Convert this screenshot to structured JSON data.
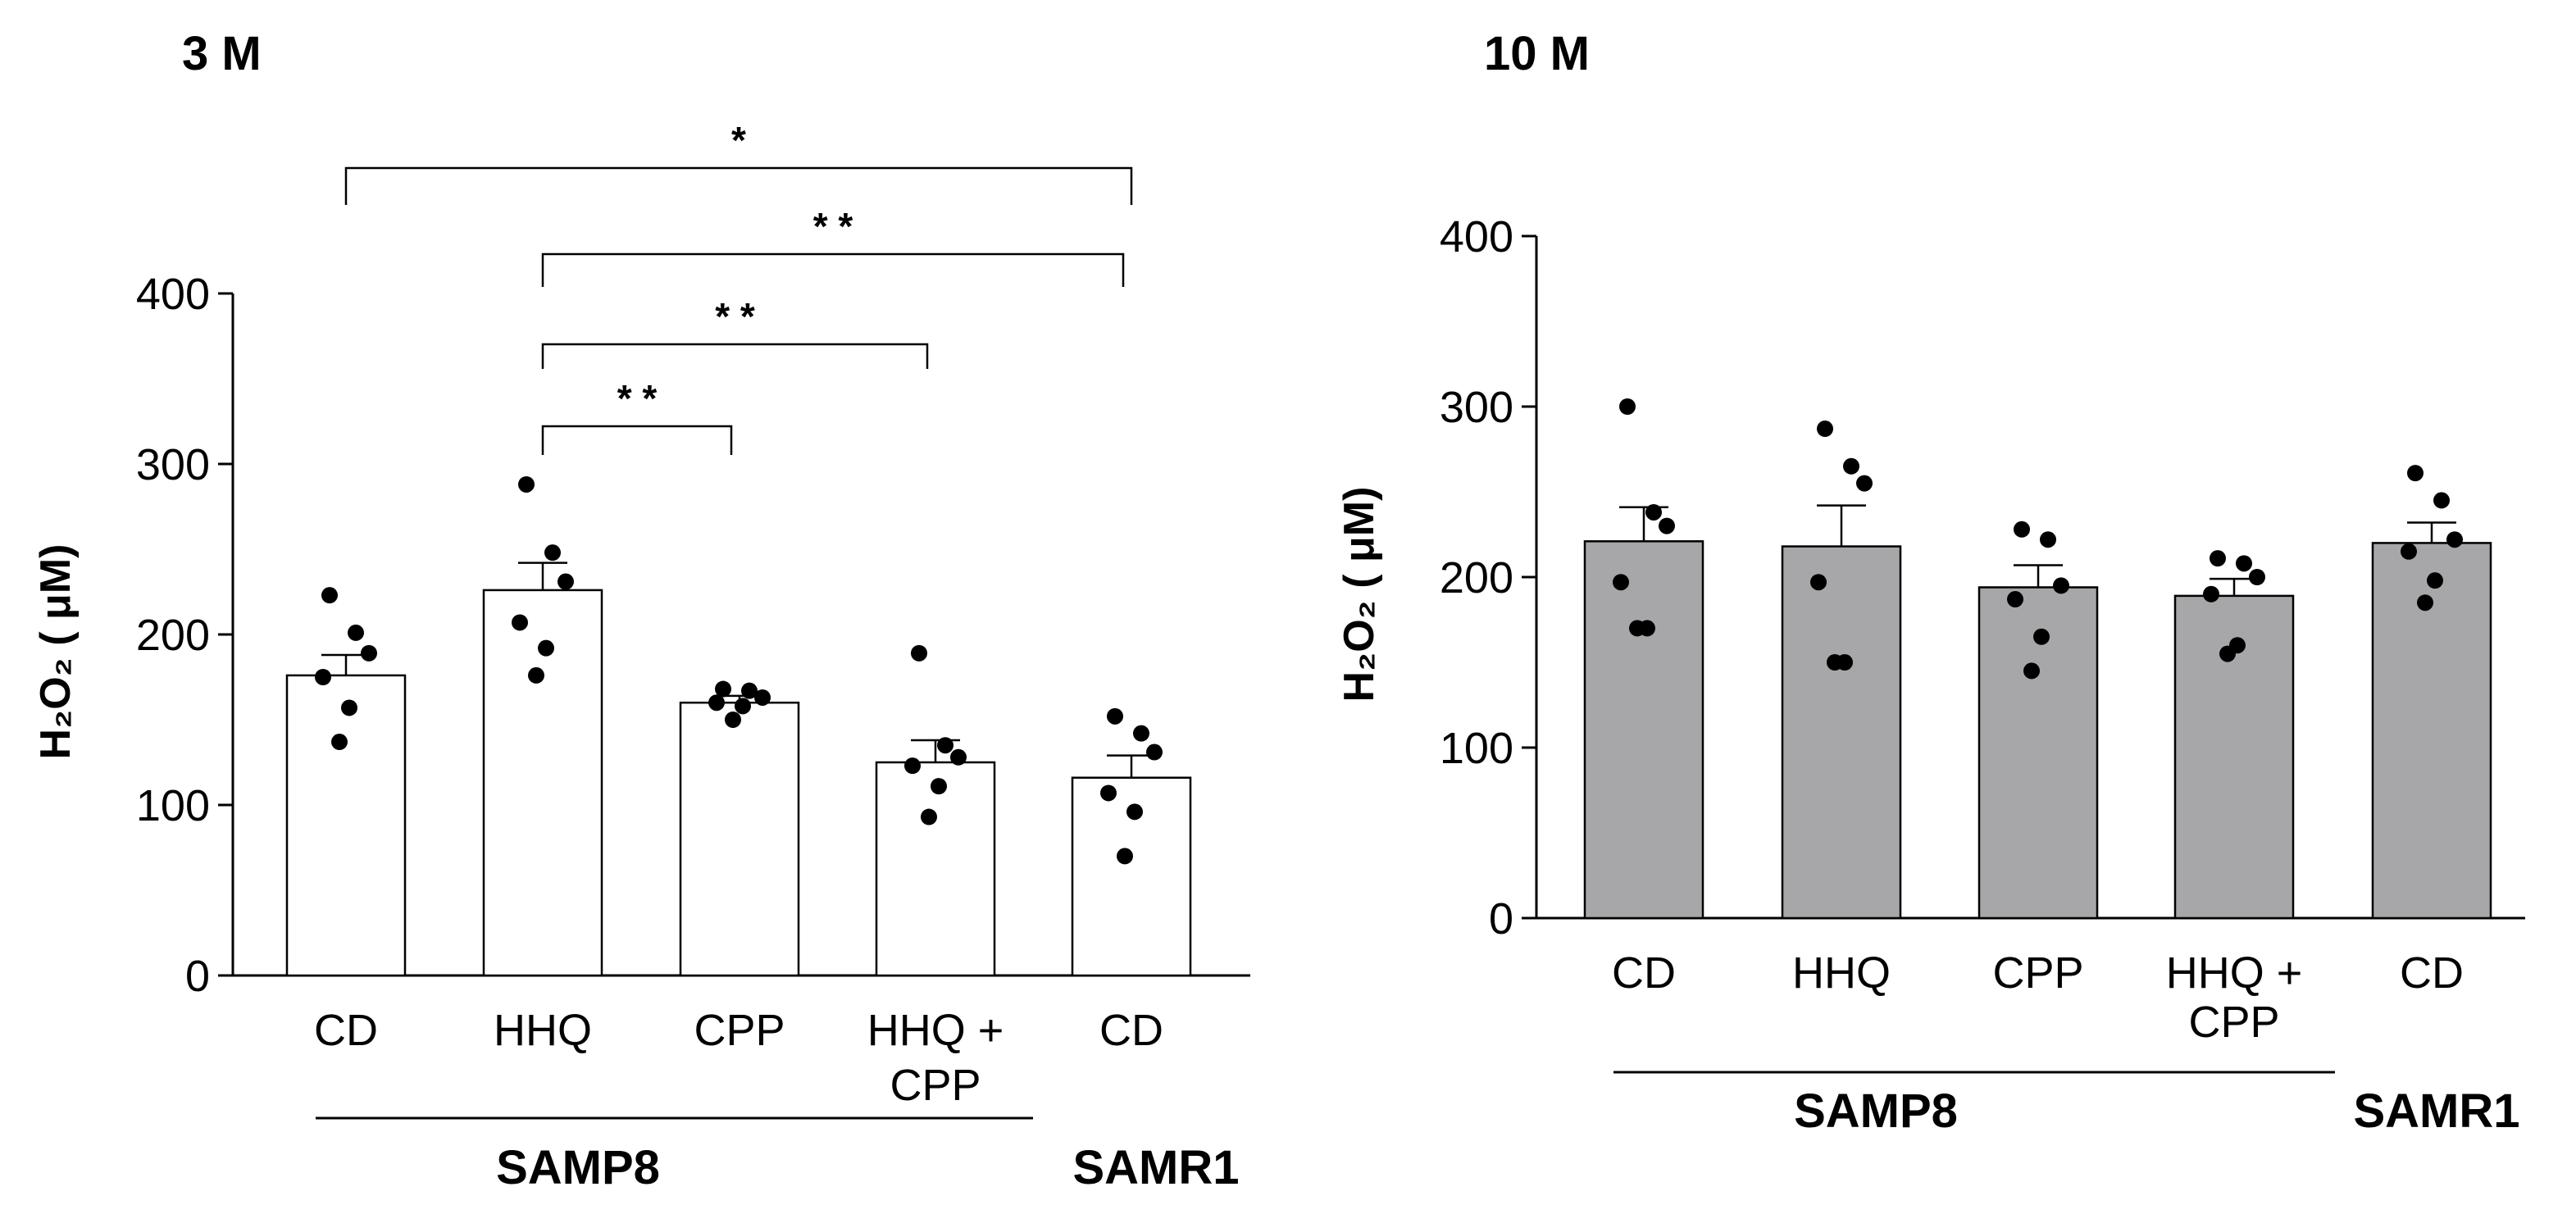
{
  "chart_data": [
    {
      "type": "bar",
      "title": "3 M",
      "ylabel": "H₂O₂ ( μM)",
      "ylim": [
        0,
        400
      ],
      "yticks": [
        0,
        100,
        200,
        300,
        400
      ],
      "bar_fill": "#ffffff",
      "categories": [
        "CD",
        "HHQ",
        "CPP",
        "HHQ + CPP",
        "CD"
      ],
      "category_lines": [
        [
          "CD"
        ],
        [
          "HHQ"
        ],
        [
          "CPP"
        ],
        [
          "HHQ +",
          "CPP"
        ],
        [
          "CD"
        ]
      ],
      "groups": [
        {
          "label": "SAMP8",
          "from": 0,
          "to": 3
        },
        {
          "label": "SAMR1",
          "from": 4,
          "to": 4
        }
      ],
      "values": [
        176,
        226,
        160,
        125,
        116
      ],
      "sem": [
        12,
        16,
        4,
        13,
        13
      ],
      "points": [
        [
          223,
          201,
          189,
          175,
          157,
          137
        ],
        [
          288,
          248,
          231,
          207,
          192,
          176
        ],
        [
          168,
          167,
          163,
          160,
          158,
          150
        ],
        [
          189,
          135,
          128,
          123,
          111,
          93
        ],
        [
          152,
          142,
          131,
          107,
          96,
          70
        ]
      ],
      "significance": [
        {
          "from": 0,
          "to": 4,
          "label": "*"
        },
        {
          "from": 1,
          "to": 4,
          "label": "* *"
        },
        {
          "from": 1,
          "to": 3,
          "label": "* *"
        },
        {
          "from": 1,
          "to": 2,
          "label": "* *"
        }
      ]
    },
    {
      "type": "bar",
      "title": "10 M",
      "ylabel": "H₂O₂ ( μM)",
      "ylim": [
        0,
        400
      ],
      "yticks": [
        0,
        100,
        200,
        300,
        400
      ],
      "bar_fill": "#a7a7a9",
      "categories": [
        "CD",
        "HHQ",
        "CPP",
        "HHQ + CPP",
        "CD"
      ],
      "category_lines": [
        [
          "CD"
        ],
        [
          "HHQ"
        ],
        [
          "CPP"
        ],
        [
          "HHQ +",
          "CPP"
        ],
        [
          "CD"
        ]
      ],
      "groups": [
        {
          "label": "SAMP8",
          "from": 0,
          "to": 3
        },
        {
          "label": "SAMR1",
          "from": 4,
          "to": 4
        }
      ],
      "values": [
        221,
        218,
        194,
        189,
        220
      ],
      "sem": [
        20,
        24,
        13,
        10,
        12
      ],
      "points": [
        [
          300,
          238,
          230,
          197,
          170,
          170
        ],
        [
          287,
          265,
          255,
          197,
          150,
          150
        ],
        [
          228,
          222,
          195,
          187,
          165,
          145
        ],
        [
          211,
          208,
          200,
          190,
          160,
          155
        ],
        [
          261,
          245,
          222,
          215,
          198,
          185
        ]
      ],
      "significance": []
    }
  ]
}
